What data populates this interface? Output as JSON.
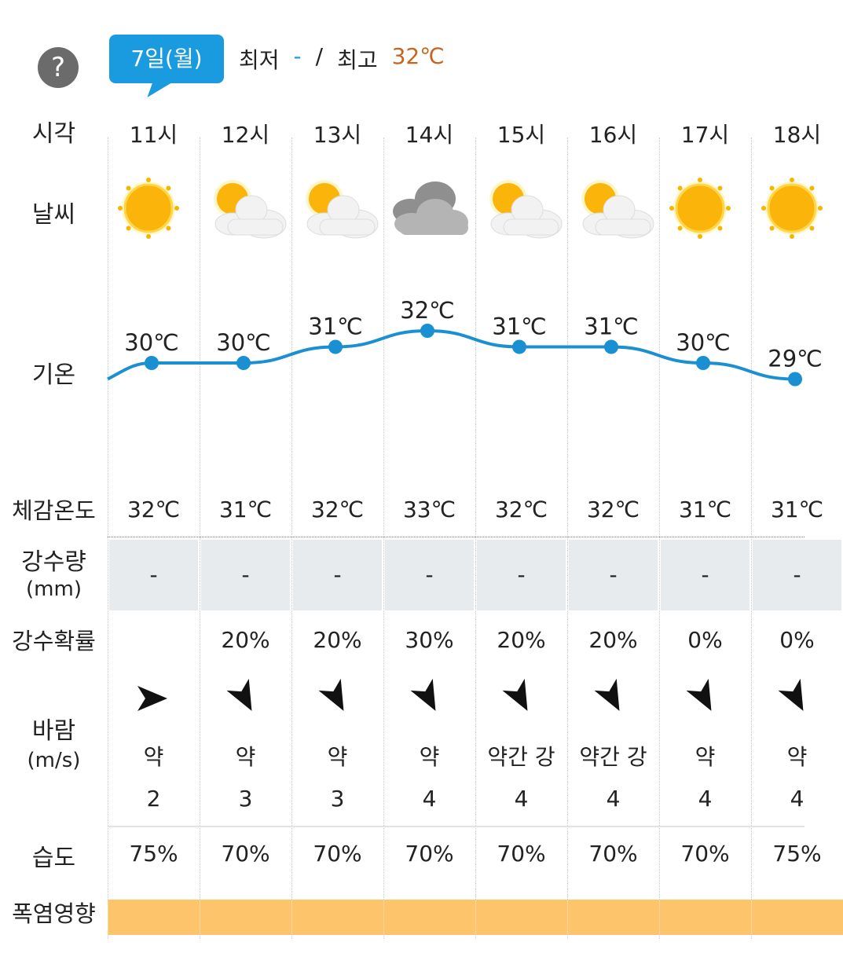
{
  "header": {
    "help_icon": "question-icon",
    "date": "7일(월)",
    "min_label": "최저",
    "min_value": "-",
    "sep": "/",
    "max_label": "최고",
    "max_value": "32℃",
    "min_color": "#1a9be0",
    "max_color": "#c8641e"
  },
  "labels": {
    "time": "시각",
    "weather": "날씨",
    "temp": "기온",
    "feels": "체감온도",
    "rain_amount": "강수량",
    "rain_unit": "(mm)",
    "rain_prob": "강수확률",
    "wind": "바람",
    "wind_unit": "(m/s)",
    "humidity": "습도",
    "heat": "폭염영향"
  },
  "heat_color": "#fdc46c",
  "hours": [
    {
      "time": "11시",
      "weather": "sunny",
      "temp": "30℃",
      "t": 30,
      "feels": "32℃",
      "rain": "-",
      "prob": "",
      "wind_dir": "east",
      "wind_strength": "약",
      "wind_speed": "2",
      "humidity": "75%"
    },
    {
      "time": "12시",
      "weather": "partly-cloudy",
      "temp": "30℃",
      "t": 30,
      "feels": "31℃",
      "rain": "-",
      "prob": "20%",
      "wind_dir": "south-southeast",
      "wind_strength": "약",
      "wind_speed": "3",
      "humidity": "70%"
    },
    {
      "time": "13시",
      "weather": "partly-cloudy",
      "temp": "31℃",
      "t": 31,
      "feels": "32℃",
      "rain": "-",
      "prob": "20%",
      "wind_dir": "south-southeast",
      "wind_strength": "약",
      "wind_speed": "3",
      "humidity": "70%"
    },
    {
      "time": "14시",
      "weather": "cloudy",
      "temp": "32℃",
      "t": 32,
      "feels": "33℃",
      "rain": "-",
      "prob": "30%",
      "wind_dir": "south-southeast",
      "wind_strength": "약",
      "wind_speed": "4",
      "humidity": "70%"
    },
    {
      "time": "15시",
      "weather": "partly-cloudy",
      "temp": "31℃",
      "t": 31,
      "feels": "32℃",
      "rain": "-",
      "prob": "20%",
      "wind_dir": "south-southeast",
      "wind_strength": "약간 강",
      "wind_speed": "4",
      "humidity": "70%"
    },
    {
      "time": "16시",
      "weather": "partly-cloudy",
      "temp": "31℃",
      "t": 31,
      "feels": "32℃",
      "rain": "-",
      "prob": "20%",
      "wind_dir": "south-southeast",
      "wind_strength": "약간 강",
      "wind_speed": "4",
      "humidity": "70%"
    },
    {
      "time": "17시",
      "weather": "sunny",
      "temp": "30℃",
      "t": 30,
      "feels": "31℃",
      "rain": "-",
      "prob": "0%",
      "wind_dir": "south-southeast",
      "wind_strength": "약",
      "wind_speed": "4",
      "humidity": "70%"
    },
    {
      "time": "18시",
      "weather": "sunny",
      "temp": "29℃",
      "t": 29,
      "feels": "31℃",
      "rain": "-",
      "prob": "0%",
      "wind_dir": "south-southeast",
      "wind_strength": "약",
      "wind_speed": "4",
      "humidity": "75%"
    }
  ]
}
